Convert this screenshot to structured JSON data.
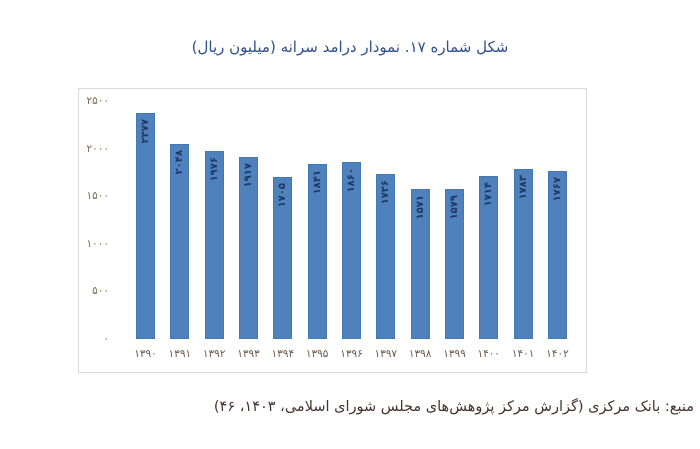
{
  "page": {
    "title": "شکل شماره ۱۷. نمودار درامد سرانه (میلیون ریال)",
    "source": "منبع: بانک مرکزی (گزارش مرکز پژوهش‌های مجلس شورای اسلامی، ۱۴۰۳، ۴۶)"
  },
  "colors": {
    "bar_fill": "#4f81bd",
    "bar_border": "#4378b4",
    "value_label": "#1f3864",
    "title_text": "#2f4f8f",
    "source_text": "#45332b",
    "y_axis_label": "#7c6854",
    "x_axis_label": "#6e5946",
    "frame_border": "#d9d9d9"
  },
  "chart_data": {
    "type": "bar",
    "title": "شکل شماره ۱۷. نمودار درامد سرانه (میلیون ریال)",
    "xlabel": "",
    "ylabel": "میلیون ریال",
    "grid": false,
    "legend": null,
    "ylim": [
      0,
      2500
    ],
    "categories": [
      "۱۳۹۰",
      "۱۳۹۱",
      "۱۳۹۲",
      "۱۳۹۳",
      "۱۳۹۴",
      "۱۳۹۵",
      "۱۳۹۶",
      "۱۳۹۷",
      "۱۳۹۸",
      "۱۳۹۹",
      "۱۴۰۰",
      "۱۴۰۱",
      "۱۴۰۲"
    ],
    "categories_western": [
      1390,
      1391,
      1392,
      1393,
      1394,
      1395,
      1396,
      1397,
      1398,
      1399,
      1400,
      1401,
      1402
    ],
    "values": [
      2377,
      2048,
      1976,
      1917,
      1705,
      1841,
      1860,
      1736,
      1571,
      1579,
      1714,
      1783,
      1767
    ],
    "value_labels": [
      "۲۳۷۷",
      "۲۰۴۸",
      "۱۹۷۶",
      "۱۹۱۷",
      "۱۷۰۵",
      "۱۸۴۱",
      "۱۸۶۰",
      "۱۷۳۶",
      "۱۵۷۱",
      "۱۵۷۹",
      "۱۷۱۴",
      "۱۷۸۳",
      "۱۷۶۷"
    ],
    "y_ticks": [
      {
        "value": 2500,
        "label": "۲۵۰۰"
      },
      {
        "value": 2000,
        "label": "۲۰۰۰"
      },
      {
        "value": 1500,
        "label": "۱۵۰۰"
      },
      {
        "value": 1000,
        "label": "۱۰۰۰"
      },
      {
        "value": 500,
        "label": "۵۰۰"
      },
      {
        "value": 0,
        "label": "۰"
      }
    ]
  }
}
